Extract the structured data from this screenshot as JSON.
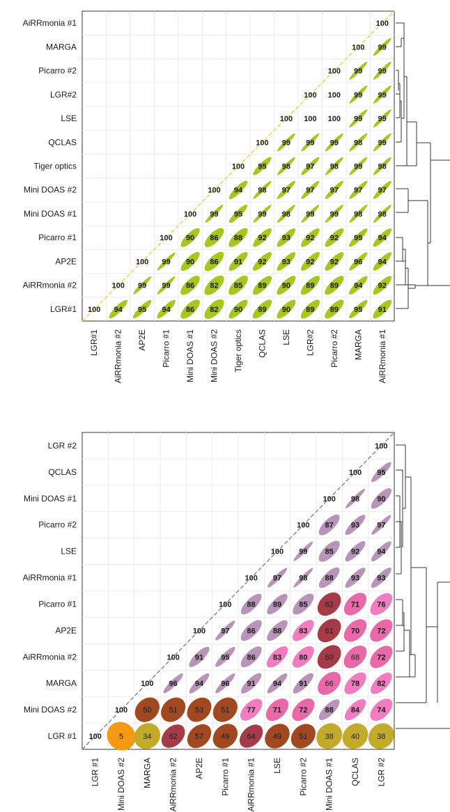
{
  "chart_data": [
    {
      "type": "heatmap",
      "title": "",
      "display": "correlation-ellipse-lower-triangle",
      "colors": {
        "ellipse": "#a6c81e",
        "diagonal_line": "#f2cf4a",
        "dendrogram": "#333333"
      },
      "row_labels_top_to_bottom": [
        "AiRRmonia #1",
        "MARGA",
        "Picarro #2",
        "LGR#2",
        "LSE",
        "QCLAS",
        "Tiger optics",
        "Mini DOAS #2",
        "Mini DOAS #1",
        "Picarro #1",
        "AP2E",
        "AiRRmonia #2",
        "LGR#1"
      ],
      "column_labels_left_to_right": [
        "LGR#1",
        "AiRRmonia #2",
        "AP2E",
        "Picarro #1",
        "Mini DOAS #1",
        "Mini DOAS #2",
        "Tiger optics",
        "QCLAS",
        "LSE",
        "LGR#2",
        "Picarro #2",
        "MARGA",
        "AiRRmonia #1"
      ],
      "values": [
        [
          100
        ],
        [
          100,
          99
        ],
        [
          100,
          99,
          99
        ],
        [
          100,
          100,
          99,
          99
        ],
        [
          100,
          100,
          100,
          99,
          99
        ],
        [
          100,
          99,
          99,
          99,
          98,
          99
        ],
        [
          100,
          95,
          98,
          97,
          98,
          99,
          98
        ],
        [
          100,
          94,
          98,
          97,
          97,
          97,
          97,
          97
        ],
        [
          100,
          99,
          95,
          99,
          98,
          99,
          99,
          98,
          98
        ],
        [
          100,
          90,
          86,
          88,
          92,
          93,
          92,
          92,
          95,
          94
        ],
        [
          100,
          99,
          90,
          86,
          91,
          92,
          93,
          92,
          92,
          96,
          94
        ],
        [
          100,
          99,
          99,
          86,
          82,
          85,
          89,
          90,
          89,
          89,
          94,
          92
        ],
        [
          100,
          94,
          95,
          94,
          86,
          82,
          90,
          89,
          90,
          89,
          89,
          95,
          91
        ]
      ]
    },
    {
      "type": "heatmap",
      "title": "",
      "display": "correlation-ellipse-lower-triangle",
      "colors": {
        "diagonal_line": "#888888",
        "dendrogram": "#333333",
        "high": "#b694b6",
        "mid": "#f27cc0",
        "low": "#a33c48",
        "brown": "#a0481f",
        "olive": "#c4aa2a",
        "orange": "#f39a12"
      },
      "row_labels_top_to_bottom": [
        "LGR #2",
        "QCLAS",
        "Mini DOAS #1",
        "Picarro #2",
        "LSE",
        "AiRRmonia #1",
        "Picarro #1",
        "AP2E",
        "AiRRmonia #2",
        "MARGA",
        "Mini DOAS #2",
        "LGR #1"
      ],
      "column_labels_left_to_right": [
        "LGR #1",
        "Mini DOAS #2",
        "MARGA",
        "AiRRmonia #2",
        "AP2E",
        "Picarro #1",
        "AiRRmonia #1",
        "LSE",
        "Picarro #2",
        "Mini DOAS #1",
        "QCLAS",
        "LGR #2"
      ],
      "values": [
        [
          100
        ],
        [
          100,
          95
        ],
        [
          100,
          98,
          90
        ],
        [
          100,
          87,
          93,
          97
        ],
        [
          100,
          99,
          85,
          92,
          94
        ],
        [
          100,
          97,
          98,
          88,
          93,
          93
        ],
        [
          100,
          88,
          89,
          85,
          62,
          71,
          76
        ],
        [
          100,
          97,
          86,
          88,
          83,
          61,
          70,
          72
        ],
        [
          100,
          91,
          95,
          86,
          83,
          80,
          60,
          68,
          72
        ],
        [
          100,
          96,
          94,
          96,
          91,
          94,
          91,
          66,
          78,
          82
        ],
        [
          100,
          50,
          51,
          53,
          51,
          77,
          71,
          72,
          88,
          84,
          74
        ],
        [
          100,
          5,
          34,
          62,
          57,
          49,
          64,
          49,
          51,
          38,
          40,
          38
        ]
      ]
    }
  ]
}
